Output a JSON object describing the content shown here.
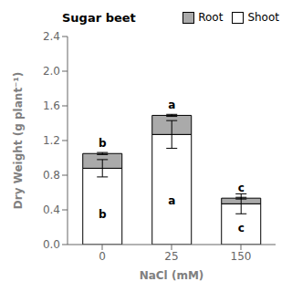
{
  "chart_data": {
    "type": "bar",
    "title": "Sugar beet",
    "xlabel": "NaCl (mM)",
    "ylabel": "Dry Weight (g plant⁻¹)",
    "categories": [
      "0",
      "25",
      "150"
    ],
    "series": [
      {
        "name": "Shoot",
        "color": "#ffffff",
        "values": [
          0.88,
          1.27,
          0.47
        ],
        "errors": [
          0.1,
          0.16,
          0.115
        ],
        "annotations": [
          "b",
          "a",
          "c"
        ]
      },
      {
        "name": "Root",
        "color": "#aaaaaa",
        "values": [
          0.17,
          0.22,
          0.065
        ],
        "errors": [
          0.012,
          0.012,
          0.01
        ],
        "annotations": [
          "b",
          "a",
          "c"
        ]
      }
    ],
    "stacked": true,
    "ylim": [
      0.0,
      2.4
    ],
    "yticks": [
      {
        "value": 0,
        "label": "0.0"
      },
      0.4,
      0.8,
      1.2,
      1.6,
      {
        "value": 2,
        "label": "2.0"
      },
      2.4
    ],
    "grid": false,
    "legend": "upper right"
  }
}
